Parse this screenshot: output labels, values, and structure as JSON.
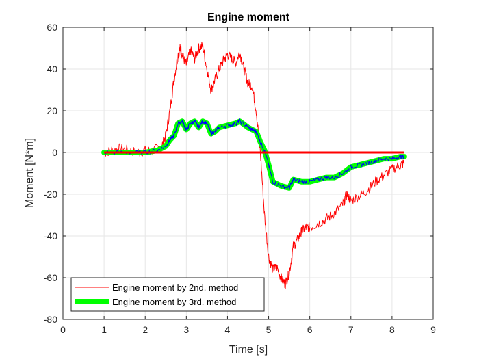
{
  "chart_data": {
    "type": "line",
    "title": "Engine moment",
    "xlabel": "Time [s]",
    "ylabel": "Moment [N*m]",
    "xlim": [
      0,
      9
    ],
    "ylim": [
      -80,
      60
    ],
    "xticks": [
      0,
      1,
      2,
      3,
      4,
      5,
      6,
      7,
      8,
      9
    ],
    "yticks": [
      -80,
      -60,
      -40,
      -20,
      0,
      20,
      40,
      60
    ],
    "grid": true,
    "legend_position": "bottom-left",
    "series": [
      {
        "name": "Engine moment by 2nd. method",
        "color": "#ff0000",
        "style": "thin-noisy",
        "x": [
          1.0,
          1.2,
          1.4,
          1.6,
          1.8,
          2.0,
          2.2,
          2.4,
          2.5,
          2.6,
          2.7,
          2.8,
          2.85,
          2.9,
          3.0,
          3.1,
          3.2,
          3.3,
          3.4,
          3.5,
          3.6,
          3.7,
          3.8,
          3.9,
          4.0,
          4.1,
          4.2,
          4.3,
          4.4,
          4.5,
          4.6,
          4.7,
          4.8,
          4.9,
          5.0,
          5.1,
          5.2,
          5.3,
          5.4,
          5.5,
          5.6,
          5.7,
          5.8,
          5.9,
          6.0,
          6.2,
          6.4,
          6.6,
          6.8,
          6.9,
          7.0,
          7.2,
          7.4,
          7.6,
          7.8,
          8.0,
          8.2,
          8.3
        ],
        "y": [
          0,
          1,
          2,
          1,
          0,
          1,
          1,
          3,
          8,
          20,
          35,
          47,
          50,
          47,
          42,
          49,
          45,
          50,
          51,
          40,
          30,
          35,
          40,
          44,
          47,
          45,
          43,
          48,
          40,
          33,
          32,
          20,
          0,
          -30,
          -50,
          -56,
          -55,
          -60,
          -63,
          -58,
          -45,
          -42,
          -38,
          -36,
          -36,
          -34,
          -32,
          -29,
          -25,
          -20,
          -23,
          -21,
          -18,
          -14,
          -11,
          -8,
          -6,
          -5
        ]
      },
      {
        "name": "Engine moment by 3rd. method",
        "color": "#00ff00",
        "style": "thick",
        "x": [
          1.0,
          1.5,
          2.0,
          2.3,
          2.5,
          2.6,
          2.7,
          2.8,
          2.9,
          3.0,
          3.1,
          3.2,
          3.3,
          3.4,
          3.5,
          3.6,
          3.7,
          3.8,
          4.0,
          4.2,
          4.3,
          4.5,
          4.6,
          4.7,
          4.8,
          4.9,
          5.0,
          5.1,
          5.3,
          5.5,
          5.6,
          5.8,
          6.0,
          6.2,
          6.4,
          6.6,
          6.8,
          7.0,
          7.2,
          7.4,
          7.6,
          7.8,
          8.0,
          8.2,
          8.3
        ],
        "y": [
          0,
          0,
          0,
          1,
          3,
          6,
          8,
          14,
          15,
          11,
          14,
          15,
          12,
          15,
          14,
          9,
          10,
          12,
          13,
          14,
          15,
          12,
          11,
          10,
          5,
          1,
          -6,
          -14,
          -16,
          -17,
          -13,
          -14,
          -14,
          -13,
          -12,
          -12,
          -10,
          -7,
          -6,
          -5,
          -4,
          -3,
          -3,
          -2,
          -2
        ]
      }
    ],
    "unlabeled_series": [
      {
        "color": "#0000ff",
        "style": "thin-noisy",
        "x": [
          1.0,
          1.5,
          2.0,
          2.3,
          2.5,
          2.6,
          2.7,
          2.8,
          2.9,
          3.0,
          3.1,
          3.2,
          3.3,
          3.4,
          3.5,
          3.6,
          3.7,
          3.8,
          4.0,
          4.2,
          4.3,
          4.5,
          4.6,
          4.7,
          4.8,
          4.9,
          5.0,
          5.1,
          5.3,
          5.5,
          5.6,
          5.8,
          6.0,
          6.2,
          6.4,
          6.6,
          6.8,
          7.0,
          7.2,
          7.4,
          7.6,
          7.8,
          8.0,
          8.2,
          8.3
        ],
        "y": [
          0,
          0,
          0,
          1,
          3,
          6,
          8,
          14,
          15,
          11,
          14,
          15,
          12,
          15,
          14,
          9,
          10,
          12,
          13,
          14,
          15,
          12,
          11,
          10,
          5,
          1,
          -6,
          -14,
          -16,
          -17,
          -13,
          -14,
          -14,
          -13,
          -12,
          -12,
          -10,
          -7,
          -6,
          -5,
          -4,
          -3,
          -3,
          -2,
          -2
        ]
      },
      {
        "color": "#ff0000",
        "style": "thick",
        "x": [
          1.0,
          8.3
        ],
        "y": [
          0,
          0
        ]
      }
    ]
  }
}
